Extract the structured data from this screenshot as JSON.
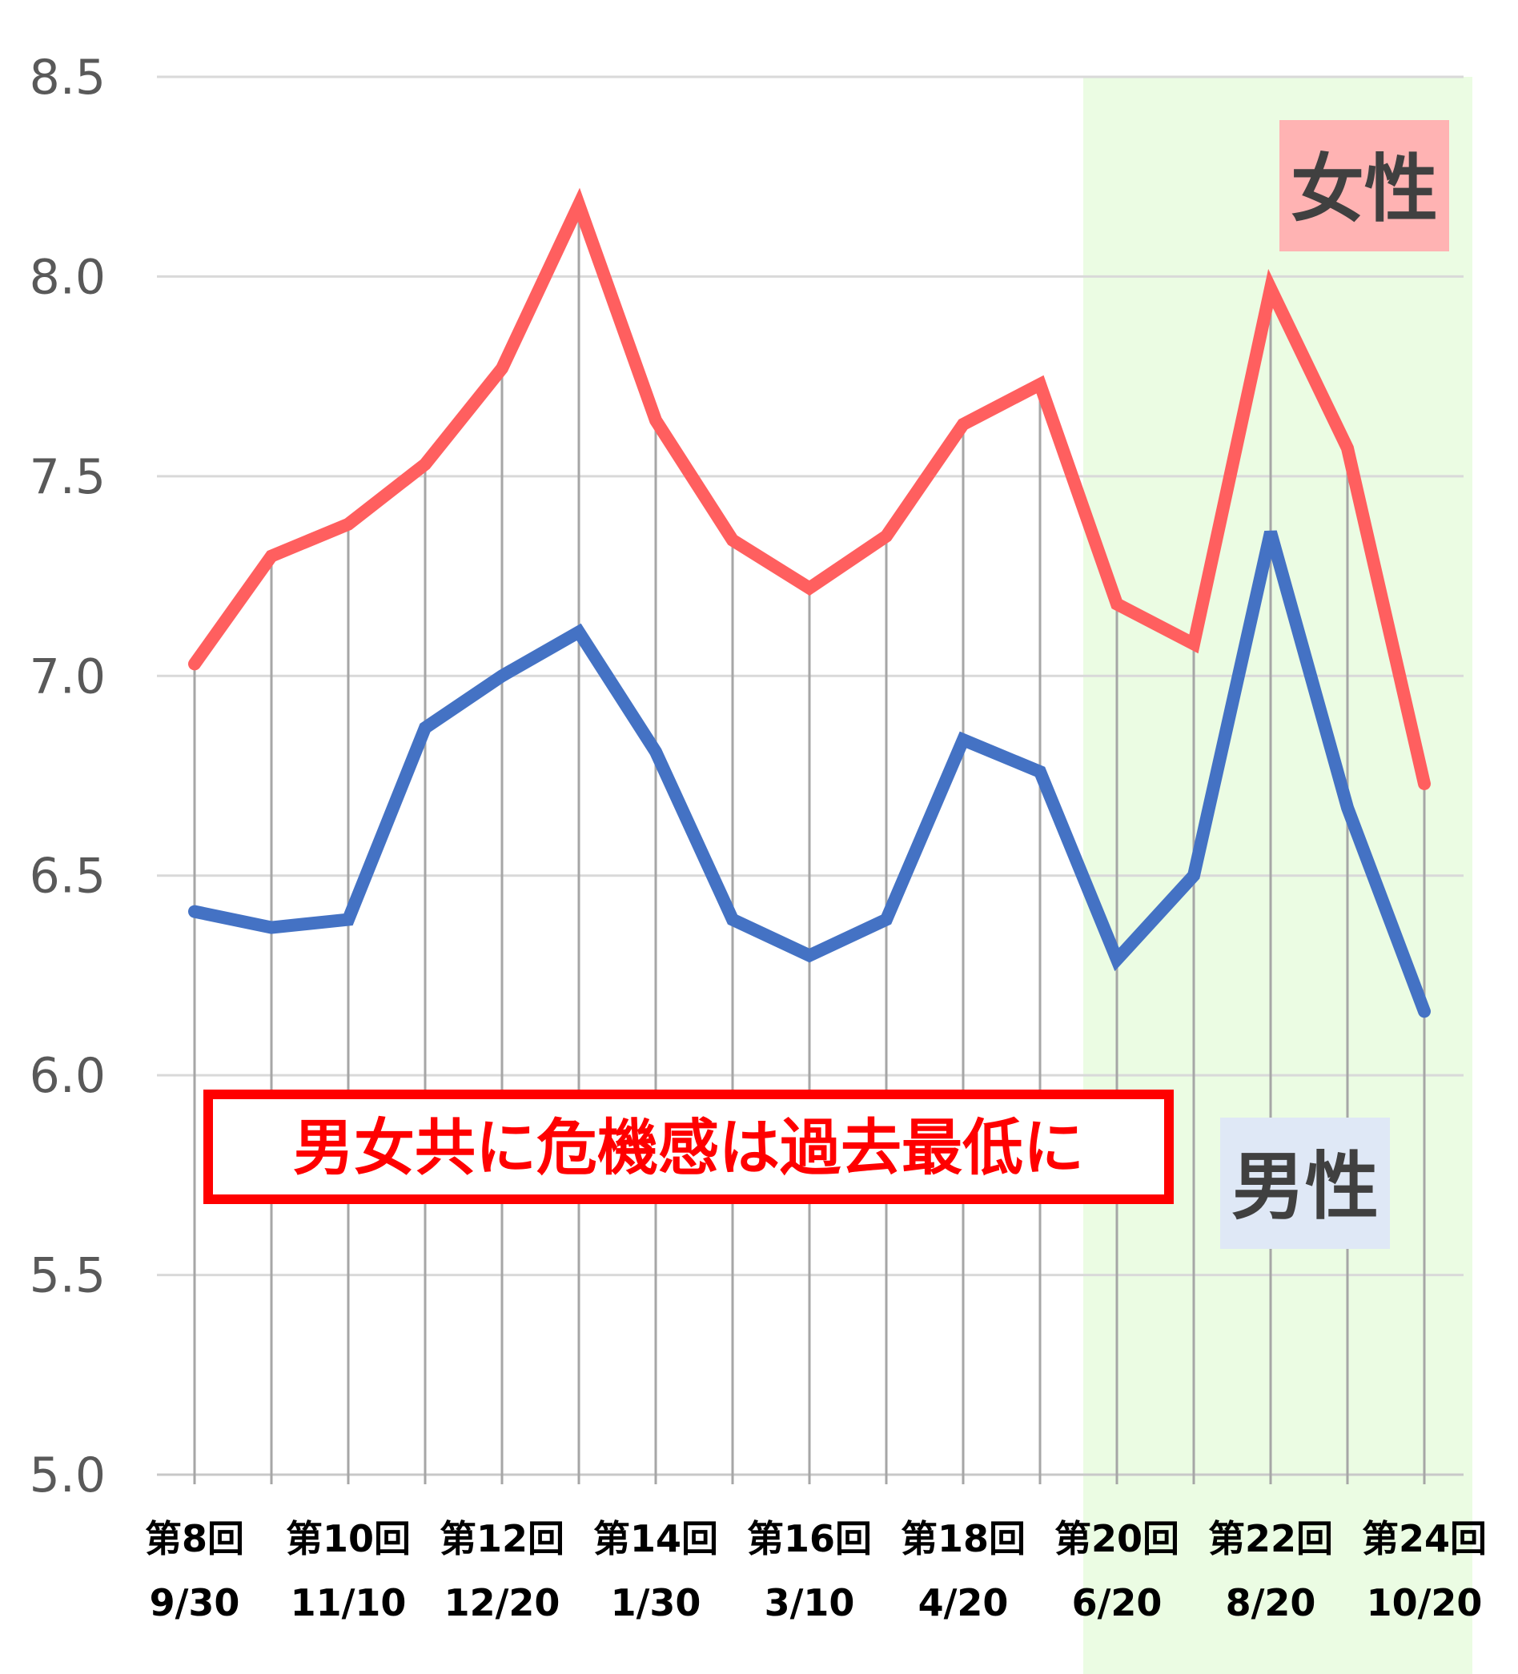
{
  "chart_data": {
    "type": "line",
    "title": "",
    "xlabel": "",
    "ylabel": "",
    "ylim": [
      5.0,
      8.5
    ],
    "yticks": [
      "5.0",
      "5.5",
      "6.0",
      "6.5",
      "7.0",
      "7.5",
      "8.0",
      "8.5"
    ],
    "grid": true,
    "x_index": [
      8,
      9,
      10,
      11,
      12,
      13,
      14,
      15,
      16,
      17,
      18,
      19,
      20,
      21,
      22,
      23,
      24
    ],
    "x_labels": [
      {
        "index": 8,
        "round": "第8回",
        "date": "9/30"
      },
      {
        "index": 10,
        "round": "第10回",
        "date": "11/10"
      },
      {
        "index": 12,
        "round": "第12回",
        "date": "12/20"
      },
      {
        "index": 14,
        "round": "第14回",
        "date": "1/30"
      },
      {
        "index": 16,
        "round": "第16回",
        "date": "3/10"
      },
      {
        "index": 18,
        "round": "第18回",
        "date": "4/20"
      },
      {
        "index": 20,
        "round": "第20回",
        "date": "6/20"
      },
      {
        "index": 22,
        "round": "第22回",
        "date": "8/20"
      },
      {
        "index": 24,
        "round": "第24回",
        "date": "10/20"
      }
    ],
    "highlight_range": [
      19.5,
      24.5
    ],
    "highlight_color": "#ebfce3",
    "series": [
      {
        "name": "女性",
        "color": "#ff5f5f",
        "values": [
          7.03,
          7.3,
          7.38,
          7.53,
          7.77,
          8.18,
          7.64,
          7.34,
          7.22,
          7.35,
          7.63,
          7.73,
          7.18,
          7.08,
          7.97,
          7.57,
          6.73
        ]
      },
      {
        "name": "男性",
        "color": "#4472c4",
        "values": [
          6.41,
          6.37,
          6.39,
          6.87,
          7.0,
          7.11,
          6.81,
          6.39,
          6.3,
          6.39,
          6.84,
          6.76,
          6.29,
          6.5,
          7.36,
          6.67,
          6.16
        ]
      }
    ],
    "legend": [
      {
        "label": "女性",
        "placement": "top-right",
        "bg": "#ffb3b3"
      },
      {
        "label": "男性",
        "placement": "lower-right",
        "bg": "#dfe8f6"
      }
    ],
    "annotation": {
      "text": "男女共に危機感は過去最低に",
      "border_color": "#ff0000",
      "text_color": "#ff0000"
    }
  }
}
